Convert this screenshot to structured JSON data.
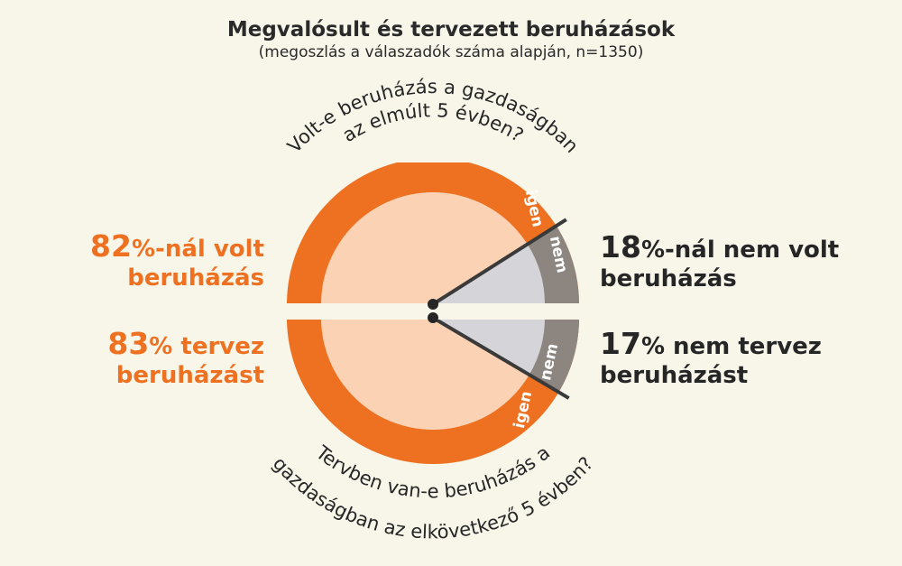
{
  "header": {
    "title": "Megvalósult és tervezett beruházások",
    "subtitle": "(megoszlás a válaszadók száma alapján, n=1350)"
  },
  "colors": {
    "orange": "#ee7122",
    "orange_light": "#fbd3b4",
    "grey_dark": "#8c8580",
    "grey_light": "#d5d5d9",
    "dark": "#262626"
  },
  "labels": {
    "top_left": {
      "pct": "82",
      "rest": "%-nál volt",
      "line2": "beruházás"
    },
    "top_right": {
      "pct": "18",
      "rest": "%-nál nem volt",
      "line2": "beruházás"
    },
    "bottom_left": {
      "pct": "83",
      "rest": "% tervez",
      "line2": "beruházást"
    },
    "bottom_right": {
      "pct": "17",
      "rest": "% nem tervez",
      "line2": "beruházást"
    }
  },
  "chart_data": [
    {
      "type": "pie",
      "title": "Volt-e beruházás a gazdaságban az elmúlt 5 évben?",
      "question_line1": "Volt-e beruházás a gazdaságban",
      "question_line2": "az elmúlt 5 évben?",
      "slices": [
        {
          "label": "igen",
          "value": 82,
          "color": "#ee7122"
        },
        {
          "label": "nem",
          "value": 18,
          "color": "#8c8580"
        }
      ]
    },
    {
      "type": "pie",
      "title": "Tervben van-e beruházás a gazdaságban az elkövetkező 5 évben?",
      "question_line1": "Tervben van-e beruházás a",
      "question_line2": "gazdaságban az elkövetkező 5 évben?",
      "slices": [
        {
          "label": "igen",
          "value": 83,
          "color": "#ee7122"
        },
        {
          "label": "nem",
          "value": 17,
          "color": "#8c8580"
        }
      ]
    }
  ]
}
